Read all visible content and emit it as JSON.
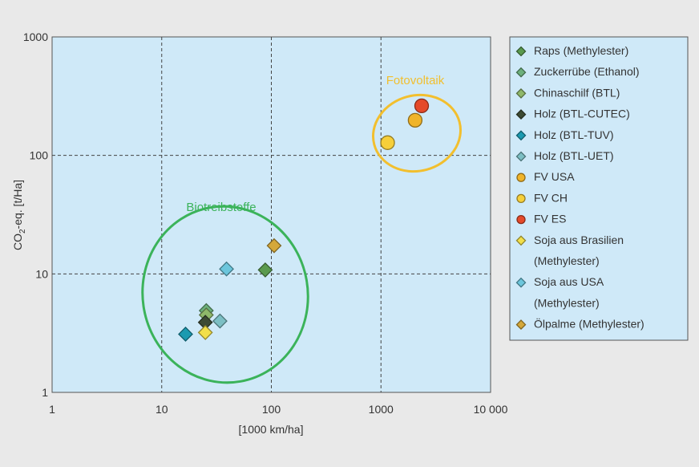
{
  "chart_data": {
    "type": "scatter",
    "title": "",
    "xlabel": "[1000 km/ha]",
    "ylabel": {
      "prefix": "CO",
      "sub": "2",
      "suffix": "-eq. [t/Ha]"
    },
    "x_scale": "log",
    "y_scale": "log",
    "xlim": [
      1,
      10000
    ],
    "ylim": [
      1,
      1000
    ],
    "x_ticks": [
      {
        "value": 1,
        "label": "1"
      },
      {
        "value": 10,
        "label": "10"
      },
      {
        "value": 100,
        "label": "100"
      },
      {
        "value": 1000,
        "label": "1000"
      },
      {
        "value": 10000,
        "label": "10 000"
      }
    ],
    "y_ticks": [
      {
        "value": 1,
        "label": "1"
      },
      {
        "value": 10,
        "label": "10"
      },
      {
        "value": 100,
        "label": "100"
      },
      {
        "value": 1000,
        "label": "1000"
      }
    ],
    "grid": true,
    "legend_position": "right",
    "series": [
      {
        "name": "Raps (Methylester)",
        "shape": "diamond",
        "color": "#5a9a4e",
        "points": [
          [
            88,
            10.8
          ]
        ]
      },
      {
        "name": "Zuckerrübe (Ethanol)",
        "shape": "diamond",
        "color": "#6db07c",
        "points": [
          [
            25.5,
            4.9
          ]
        ]
      },
      {
        "name": "Chinaschilf (BTL)",
        "shape": "diamond",
        "color": "#8fb86a",
        "points": [
          [
            25.5,
            4.5
          ]
        ]
      },
      {
        "name": "Holz (BTL-CUTEC)",
        "shape": "diamond",
        "color": "#3d4b34",
        "points": [
          [
            25,
            3.9
          ]
        ]
      },
      {
        "name": "Holz (BTL-TUV)",
        "shape": "diamond",
        "color": "#1b9ab0",
        "points": [
          [
            16.5,
            3.1
          ]
        ]
      },
      {
        "name": "Holz (BTL-UET)",
        "shape": "diamond",
        "color": "#7cbfc4",
        "points": [
          [
            34,
            4.0
          ]
        ]
      },
      {
        "name": "FV USA",
        "shape": "circle",
        "color": "#f0b429",
        "points": [
          [
            2050,
            198
          ]
        ]
      },
      {
        "name": "FV CH",
        "shape": "circle",
        "color": "#f6cf3a",
        "points": [
          [
            1150,
            128
          ]
        ]
      },
      {
        "name": "FV ES",
        "shape": "circle",
        "color": "#e54a2a",
        "points": [
          [
            2350,
            262
          ]
        ]
      },
      {
        "name": "Soja aus Brasilien (Methylester)",
        "shape": "diamond",
        "color": "#f2df4a",
        "points": [
          [
            25,
            3.2
          ]
        ]
      },
      {
        "name": "Soja aus USA (Methylester)",
        "shape": "diamond",
        "color": "#6cc6dc",
        "points": [
          [
            39,
            11
          ]
        ]
      },
      {
        "name": "Ölpalme (Methylester)",
        "shape": "diamond",
        "color": "#d4a83a",
        "points": [
          [
            106,
            17.3
          ]
        ]
      }
    ],
    "legend": [
      {
        "lines": [
          "Raps (Methylester)"
        ],
        "series": 0
      },
      {
        "lines": [
          "Zuckerrübe (Ethanol)"
        ],
        "series": 1
      },
      {
        "lines": [
          "Chinaschilf (BTL)"
        ],
        "series": 2
      },
      {
        "lines": [
          "Holz (BTL-CUTEC)"
        ],
        "series": 3
      },
      {
        "lines": [
          "Holz (BTL-TUV)"
        ],
        "series": 4
      },
      {
        "lines": [
          "Holz (BTL-UET)"
        ],
        "series": 5
      },
      {
        "lines": [
          "FV USA"
        ],
        "series": 6
      },
      {
        "lines": [
          "FV CH"
        ],
        "series": 7
      },
      {
        "lines": [
          "FV ES"
        ],
        "series": 8
      },
      {
        "lines": [
          "Soja aus Brasilien",
          "(Methylester)"
        ],
        "series": 9
      },
      {
        "lines": [
          "Soja aus USA",
          "(Methylester)"
        ],
        "series": 10
      },
      {
        "lines": [
          "Ölpalme (Methylester)"
        ],
        "series": 11
      }
    ],
    "annotations": [
      {
        "text": "Biotreibstoffe",
        "color": "#3bb35a",
        "encloses": "biofuels"
      },
      {
        "text": "Fotovoltaik",
        "color": "#f2bf2e",
        "encloses": "photovoltaics"
      }
    ],
    "colors": {
      "plot_background": "#cfe9f8",
      "page_background": "#e9e9e9",
      "grid": "#444444"
    }
  }
}
